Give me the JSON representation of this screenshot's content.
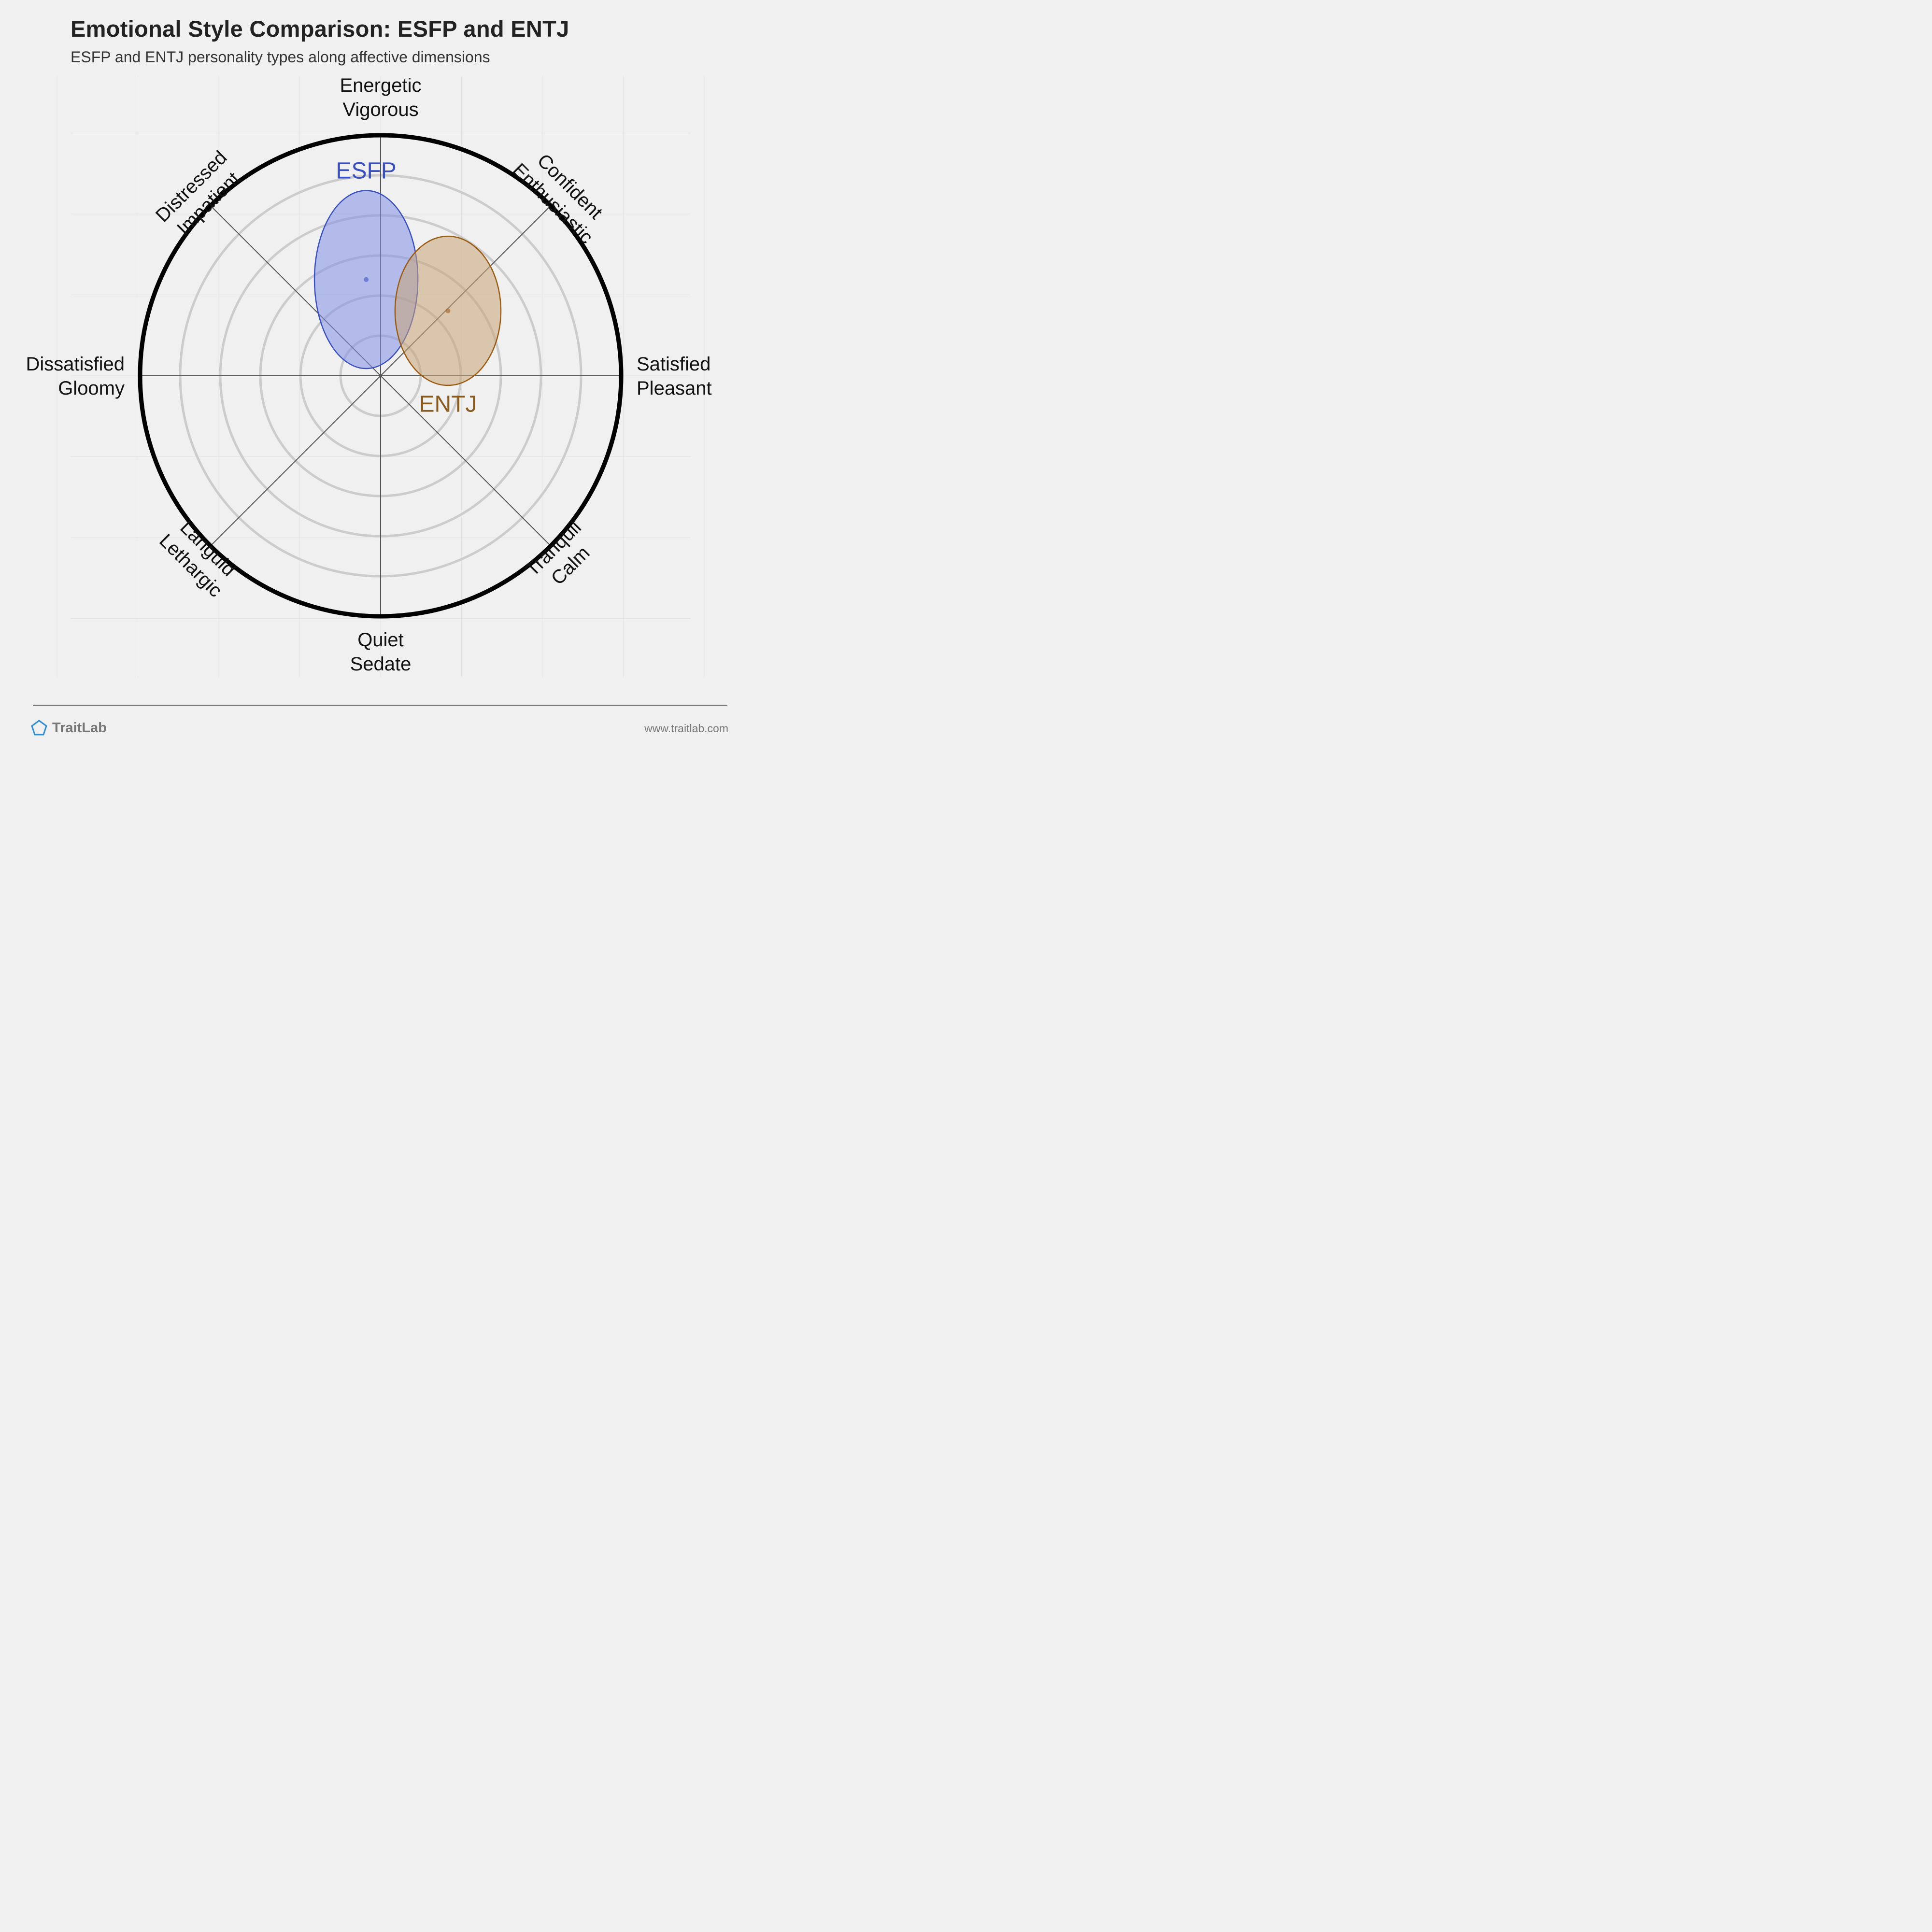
{
  "title": "Emotional Style Comparison: ESFP and ENTJ",
  "subtitle": "ESFP and ENTJ personality types along affective dimensions",
  "brand": {
    "name": "TraitLab",
    "icon": "pentagon-icon",
    "url": "www.traitlab.com"
  },
  "chart_data": {
    "type": "scatter",
    "axes": [
      {
        "label": [
          "Energetic",
          "Vigorous"
        ]
      },
      {
        "label": [
          "Confident",
          "Enthusiastic"
        ]
      },
      {
        "label": [
          "Satisfied",
          "Pleasant"
        ]
      },
      {
        "label": [
          "Tranquil",
          "Calm"
        ]
      },
      {
        "label": [
          "Quiet",
          "Sedate"
        ]
      },
      {
        "label": [
          "Languid",
          "Lethargic"
        ]
      },
      {
        "label": [
          "Dissatisfied",
          "Gloomy"
        ]
      },
      {
        "label": [
          "Distressed",
          "Impatient"
        ]
      }
    ],
    "range": [
      -1,
      1
    ],
    "rings": 6,
    "series": [
      {
        "name": "ESFP",
        "x": -0.06,
        "y": 0.4,
        "spread_x": 0.43,
        "spread_y": 0.37,
        "color": "#3a4fc0",
        "fill": "#8090e6",
        "label_color": "#3a4fc0"
      },
      {
        "name": "ENTJ",
        "x": 0.28,
        "y": 0.27,
        "spread_x": 0.44,
        "spread_y": 0.31,
        "color": "#9a5a10",
        "fill": "#c9a477",
        "label_color": "#8a5a1e"
      }
    ]
  }
}
